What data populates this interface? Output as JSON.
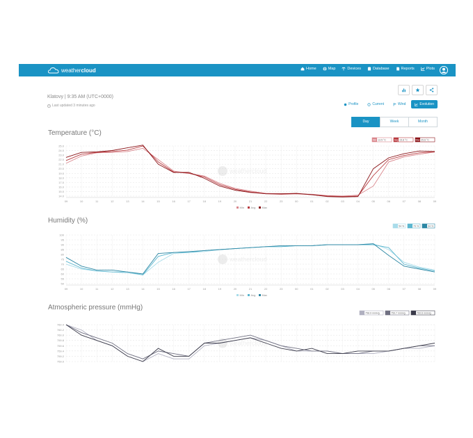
{
  "app": {
    "brand_regular": "weather",
    "brand_bold": "cloud"
  },
  "nav": [
    {
      "label": "Home",
      "icon": "home-icon"
    },
    {
      "label": "Map",
      "icon": "globe-icon"
    },
    {
      "label": "Devices",
      "icon": "devices-icon"
    },
    {
      "label": "Database",
      "icon": "database-icon"
    },
    {
      "label": "Reports",
      "icon": "reports-icon"
    },
    {
      "label": "Plots",
      "icon": "plots-icon"
    }
  ],
  "station": {
    "title": "Klatovy | 9:35 AM (UTC+0000)",
    "updated": "Last updated 3 minutes ago"
  },
  "tools": [
    {
      "icon": "bar-chart-icon"
    },
    {
      "icon": "star-icon"
    },
    {
      "icon": "share-icon"
    }
  ],
  "view_tabs": [
    {
      "label": "Profile",
      "icon": "profile-icon",
      "active": false
    },
    {
      "label": "Current",
      "icon": "current-icon",
      "active": false
    },
    {
      "label": "Wind",
      "icon": "wind-icon",
      "active": false
    },
    {
      "label": "Evolution",
      "icon": "evolution-icon",
      "active": true
    }
  ],
  "period_tabs": [
    {
      "label": "Day",
      "active": true
    },
    {
      "label": "Week",
      "active": false
    },
    {
      "label": "Month",
      "active": false
    }
  ],
  "colors": {
    "brand": "#1a93c4",
    "temp_min": "#d9868c",
    "temp_avg": "#b83a3f",
    "temp_max": "#8b1418",
    "hum_min": "#a9dcea",
    "hum_avg": "#5bb6cf",
    "hum_max": "#2c87a4",
    "pres_min": "#b0b0c0",
    "pres_avg": "#707082",
    "pres_max": "#3b3b4a"
  },
  "chart_data": [
    {
      "type": "line",
      "title": "Temperature (°C)",
      "x": [
        "09",
        "10",
        "11",
        "12",
        "13",
        "14",
        "15",
        "16",
        "17",
        "18",
        "19",
        "20",
        "21",
        "22",
        "23",
        "00",
        "01",
        "02",
        "03",
        "04",
        "05",
        "06",
        "07",
        "08",
        "09"
      ],
      "y_ticks": [
        "25.0",
        "24.0",
        "23.0",
        "22.0",
        "21.0",
        "20.0",
        "19.0",
        "18.0",
        "17.0",
        "16.0",
        "15.0",
        "14.0"
      ],
      "ylim": [
        14,
        25
      ],
      "legend_values": [
        {
          "label": "Min",
          "value": "13.5 °C"
        },
        {
          "label": "Avg",
          "value": "15.8 °C"
        },
        {
          "label": "Max",
          "value": "25.6 °C"
        }
      ],
      "legend_bottom": [
        "Min",
        "Avg",
        "Max"
      ],
      "series": [
        {
          "name": "Min",
          "values": [
            21.2,
            22.8,
            23.5,
            23.6,
            23.8,
            24.5,
            22.0,
            19.5,
            19.0,
            18.4,
            16.8,
            15.7,
            15.1,
            14.6,
            14.5,
            14.5,
            14.4,
            14.1,
            14.0,
            14.2,
            16.2,
            21.5,
            22.6,
            23.2,
            23.7
          ]
        },
        {
          "name": "Avg",
          "values": [
            21.8,
            23.2,
            23.6,
            23.8,
            24.1,
            25.0,
            21.5,
            19.3,
            19.0,
            18.2,
            16.5,
            15.5,
            14.9,
            14.5,
            14.4,
            14.5,
            14.3,
            14.0,
            13.9,
            14.0,
            18.5,
            22.0,
            22.9,
            23.5,
            23.7
          ]
        },
        {
          "name": "Max",
          "values": [
            22.5,
            23.6,
            23.7,
            24.0,
            24.6,
            25.2,
            21.0,
            19.2,
            19.2,
            17.9,
            16.2,
            15.3,
            14.8,
            14.5,
            14.5,
            14.6,
            14.3,
            13.9,
            13.8,
            13.9,
            20.0,
            22.4,
            23.3,
            23.9,
            23.8
          ]
        }
      ]
    },
    {
      "type": "line",
      "title": "Humidity (%)",
      "x": [
        "09",
        "10",
        "11",
        "12",
        "13",
        "14",
        "15",
        "16",
        "17",
        "18",
        "19",
        "20",
        "21",
        "22",
        "23",
        "00",
        "01",
        "02",
        "03",
        "04",
        "05",
        "06",
        "07",
        "08",
        "09"
      ],
      "y_ticks": [
        "100",
        "95",
        "90",
        "85",
        "80",
        "75",
        "70",
        "65",
        "60",
        "55",
        "50"
      ],
      "ylim": [
        50,
        100
      ],
      "legend_values": [
        {
          "label": "",
          "value": "54 %"
        },
        {
          "label": "",
          "value": "79 %"
        },
        {
          "label": "",
          "value": "94 %"
        }
      ],
      "legend_bottom": [
        "Min",
        "Avg",
        "Max"
      ],
      "series": [
        {
          "name": "Min",
          "values": [
            70,
            65,
            63,
            62,
            61,
            59,
            72,
            81,
            82,
            83,
            85,
            86,
            87,
            88,
            88,
            89,
            89,
            90,
            90,
            90,
            91,
            85,
            72,
            67,
            64
          ]
        },
        {
          "name": "Avg",
          "values": [
            73,
            66,
            63,
            62,
            62,
            59,
            78,
            82,
            82,
            84,
            85,
            86,
            87,
            88,
            88,
            89,
            89,
            90,
            90,
            90,
            90,
            87,
            70,
            66,
            63
          ]
        },
        {
          "name": "Max",
          "values": [
            77,
            68,
            64,
            64,
            62,
            60,
            81,
            82,
            83,
            84,
            85,
            86,
            87,
            88,
            89,
            89,
            89,
            90,
            90,
            90,
            91,
            79,
            68,
            65,
            62
          ]
        }
      ]
    },
    {
      "type": "line",
      "title": "Atmospheric pressure (mmHg)",
      "x": [
        "09",
        "10",
        "11",
        "12",
        "13",
        "14",
        "15",
        "16",
        "17",
        "18",
        "19",
        "20",
        "21",
        "22",
        "23",
        "00",
        "01",
        "02",
        "03",
        "04",
        "05",
        "06",
        "07",
        "08",
        "09"
      ],
      "y_ticks": [
        "760.4",
        "760.2",
        "760.0",
        "759.8",
        "759.6",
        "759.4",
        "759.2",
        "759.0"
      ],
      "ylim": [
        759.0,
        760.4
      ],
      "legend_values": [
        {
          "label": "",
          "value": "758.9 mmHg"
        },
        {
          "label": "",
          "value": "759.7 mmHg"
        },
        {
          "label": "",
          "value": "760.6 mmHg"
        }
      ],
      "series": [
        {
          "name": "Min",
          "values": [
            760.4,
            760.2,
            759.8,
            759.6,
            759.2,
            759.0,
            759.3,
            759.1,
            759.1,
            759.6,
            759.7,
            759.8,
            759.9,
            759.8,
            759.6,
            759.4,
            759.4,
            759.4,
            759.3,
            759.3,
            759.3,
            759.4,
            759.5,
            759.5,
            759.6
          ]
        },
        {
          "name": "Avg",
          "values": [
            760.4,
            760.1,
            759.9,
            759.7,
            759.3,
            759.1,
            759.4,
            759.3,
            759.2,
            759.7,
            759.8,
            759.9,
            760.0,
            759.8,
            759.6,
            759.5,
            759.4,
            759.4,
            759.3,
            759.3,
            759.4,
            759.4,
            759.5,
            759.6,
            759.6
          ]
        },
        {
          "name": "Max",
          "values": [
            760.4,
            760.0,
            759.8,
            759.6,
            759.2,
            759.0,
            759.5,
            759.2,
            759.2,
            759.7,
            759.7,
            759.8,
            759.9,
            759.7,
            759.5,
            759.4,
            759.5,
            759.3,
            759.3,
            759.4,
            759.4,
            759.4,
            759.5,
            759.6,
            759.7
          ]
        }
      ]
    }
  ]
}
